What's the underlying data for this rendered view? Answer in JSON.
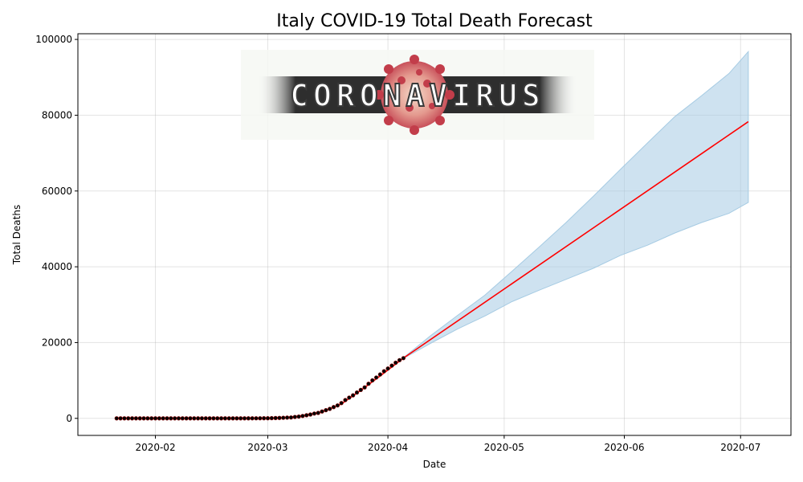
{
  "chart_data": {
    "type": "line",
    "title": "Italy COVID-19 Total Death Forecast",
    "xlabel": "Date",
    "ylabel": "Total Deaths",
    "xlim": [
      "2020-01-12",
      "2020-07-14"
    ],
    "ylim": [
      -4500,
      101500
    ],
    "x_ticks": [
      "2020-02-01",
      "2020-03-01",
      "2020-04-01",
      "2020-05-01",
      "2020-06-01",
      "2020-07-01"
    ],
    "x_tick_labels": [
      "2020-02",
      "2020-03",
      "2020-04",
      "2020-05",
      "2020-06",
      "2020-07"
    ],
    "y_ticks": [
      0,
      20000,
      40000,
      60000,
      80000,
      100000
    ],
    "y_tick_labels": [
      "0",
      "20000",
      "40000",
      "60000",
      "80000",
      "100000"
    ],
    "grid": true,
    "colors": {
      "observed_points": "#000000",
      "observed_edge": "#8b0000",
      "forecast_line": "#ff0000",
      "confidence_band": "#a6cbe3"
    },
    "series": [
      {
        "kind": "scatter",
        "x": [
          "2020-01-22",
          "2020-01-23",
          "2020-01-24",
          "2020-01-25",
          "2020-01-26",
          "2020-01-27",
          "2020-01-28",
          "2020-01-29",
          "2020-01-30",
          "2020-01-31",
          "2020-02-01",
          "2020-02-02",
          "2020-02-03",
          "2020-02-04",
          "2020-02-05",
          "2020-02-06",
          "2020-02-07",
          "2020-02-08",
          "2020-02-09",
          "2020-02-10",
          "2020-02-11",
          "2020-02-12",
          "2020-02-13",
          "2020-02-14",
          "2020-02-15",
          "2020-02-16",
          "2020-02-17",
          "2020-02-18",
          "2020-02-19",
          "2020-02-20",
          "2020-02-21",
          "2020-02-22",
          "2020-02-23",
          "2020-02-24",
          "2020-02-25",
          "2020-02-26",
          "2020-02-27",
          "2020-02-28",
          "2020-02-29",
          "2020-03-01",
          "2020-03-02",
          "2020-03-03",
          "2020-03-04",
          "2020-03-05",
          "2020-03-06",
          "2020-03-07",
          "2020-03-08",
          "2020-03-09",
          "2020-03-10",
          "2020-03-11",
          "2020-03-12",
          "2020-03-13",
          "2020-03-14",
          "2020-03-15",
          "2020-03-16",
          "2020-03-17",
          "2020-03-18",
          "2020-03-19",
          "2020-03-20",
          "2020-03-21",
          "2020-03-22",
          "2020-03-23",
          "2020-03-24",
          "2020-03-25",
          "2020-03-26",
          "2020-03-27",
          "2020-03-28",
          "2020-03-29",
          "2020-03-30",
          "2020-03-31",
          "2020-04-01",
          "2020-04-02",
          "2020-04-03",
          "2020-04-04",
          "2020-04-05"
        ],
        "y": [
          0,
          0,
          0,
          0,
          0,
          0,
          0,
          0,
          0,
          0,
          0,
          0,
          0,
          0,
          0,
          0,
          0,
          0,
          0,
          0,
          0,
          0,
          0,
          0,
          0,
          0,
          0,
          0,
          0,
          0,
          1,
          2,
          3,
          7,
          10,
          12,
          17,
          21,
          29,
          34,
          52,
          79,
          107,
          148,
          197,
          233,
          366,
          463,
          631,
          827,
          1016,
          1266,
          1441,
          1809,
          2158,
          2503,
          2978,
          3405,
          4032,
          4825,
          5476,
          6077,
          6820,
          7503,
          8165,
          9134,
          10023,
          10779,
          11591,
          12428,
          13155,
          13915,
          14681,
          15362,
          15887
        ]
      },
      {
        "kind": "line",
        "x": [
          "2020-01-22",
          "2020-02-29",
          "2020-03-05",
          "2020-03-10",
          "2020-03-15",
          "2020-03-20",
          "2020-03-25",
          "2020-03-30",
          "2020-04-05",
          "2020-07-03"
        ],
        "y": [
          0,
          0,
          150,
          700,
          1700,
          3800,
          7400,
          11200,
          15900,
          78300
        ]
      },
      {
        "kind": "band",
        "x": [
          "2020-04-05",
          "2020-04-12",
          "2020-04-19",
          "2020-04-26",
          "2020-05-03",
          "2020-05-10",
          "2020-05-17",
          "2020-05-24",
          "2020-05-31",
          "2020-06-07",
          "2020-06-14",
          "2020-06-21",
          "2020-06-28",
          "2020-07-03"
        ],
        "lower": [
          15800,
          19800,
          23600,
          27000,
          30800,
          33800,
          36700,
          39600,
          43000,
          45700,
          48900,
          51700,
          54100,
          57000
        ],
        "upper": [
          16000,
          21800,
          27200,
          32500,
          38800,
          45200,
          51700,
          58600,
          65700,
          72700,
          79600,
          85200,
          91000,
          96800
        ]
      }
    ]
  },
  "logo": {
    "text": "CORONAVIRUS"
  }
}
